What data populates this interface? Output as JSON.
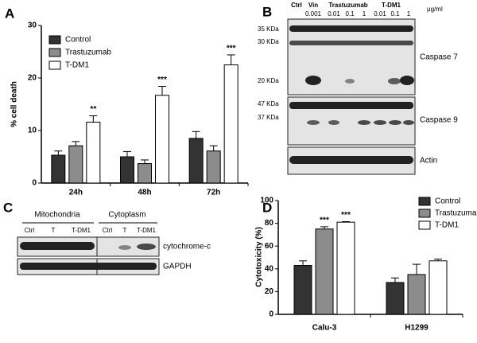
{
  "chart_data": [
    {
      "type": "bar",
      "panel_label": "A",
      "ylabel": "% cell death",
      "categories": [
        "24h",
        "48h",
        "72h"
      ],
      "series": [
        {
          "name": "Control",
          "color": "#333333",
          "values": [
            5.3,
            5.0,
            8.5
          ],
          "errors": [
            0.8,
            1.0,
            1.3
          ]
        },
        {
          "name": "Trastuzumab",
          "color": "#8c8c8c",
          "values": [
            7.1,
            3.7,
            6.1
          ],
          "errors": [
            0.8,
            0.7,
            1.0
          ]
        },
        {
          "name": "T-DM1",
          "color": "#ffffff",
          "values": [
            11.6,
            16.7,
            22.5
          ],
          "errors": [
            1.2,
            1.7,
            1.9
          ],
          "annotations": [
            "**",
            "***",
            "***"
          ]
        }
      ],
      "ylim": [
        0,
        30
      ],
      "yticks": [
        0,
        10,
        20,
        30
      ]
    },
    {
      "type": "bar",
      "panel_label": "D",
      "ylabel": "Cytotoxicity (%)",
      "categories": [
        "Calu-3",
        "H1299"
      ],
      "series": [
        {
          "name": "Control",
          "color": "#333333",
          "values": [
            43,
            28
          ],
          "errors": [
            4,
            4
          ]
        },
        {
          "name": "Trastuzumab",
          "color": "#8c8c8c",
          "values": [
            75,
            35
          ],
          "errors": [
            2,
            9
          ],
          "annotations": [
            "***",
            null
          ]
        },
        {
          "name": "T-DM1",
          "color": "#ffffff",
          "values": [
            81,
            47
          ],
          "errors": [
            0.5,
            1.5
          ],
          "annotations": [
            "***",
            null
          ]
        }
      ],
      "ylim": [
        0,
        100
      ],
      "yticks": [
        0,
        20,
        40,
        60,
        80,
        100
      ]
    }
  ],
  "panel_b": {
    "label": "B",
    "groups": [
      "Ctrl",
      "Vin",
      "Trastuzumab",
      "T-DM1"
    ],
    "concentrations": [
      "0.001",
      "0.01",
      "0.1",
      "1",
      "0.01",
      "0.1",
      "1"
    ],
    "unit": "μg/ml",
    "markers": [
      "35 KDa",
      "30 KDa",
      "20 KDa",
      "47 KDa",
      "37 KDa"
    ],
    "proteins": [
      "Caspase 7",
      "Caspase 9",
      "Actin"
    ]
  },
  "panel_c": {
    "label": "C",
    "fractions": [
      "Mitochondria",
      "Cytoplasm"
    ],
    "lanes": [
      "Ctrl",
      "T",
      "T-DM1",
      "Ctrl",
      "T",
      "T-DM1"
    ],
    "proteins": [
      "cytochrome-c",
      "GAPDH"
    ]
  }
}
